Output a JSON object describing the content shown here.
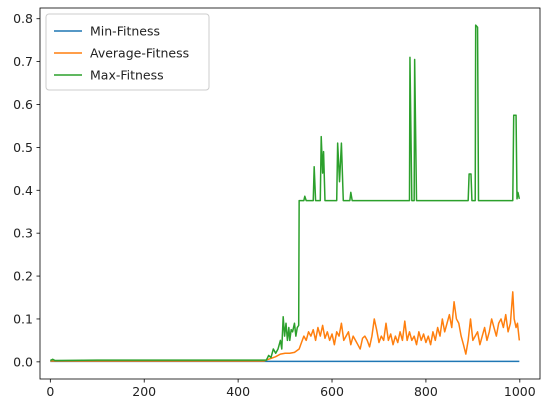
{
  "chart_data": {
    "type": "line",
    "title": "",
    "xlabel": "",
    "ylabel": "",
    "xlim": [
      -22,
      1043
    ],
    "ylim": [
      -0.04,
      0.825
    ],
    "xticks": [
      0,
      200,
      400,
      600,
      800,
      1000
    ],
    "yticks": [
      0.0,
      0.1,
      0.2,
      0.3,
      0.4,
      0.5,
      0.6,
      0.7,
      0.8
    ],
    "grid": false,
    "legend_position": "upper-left",
    "series": [
      {
        "name": "Min-Fitness",
        "color": "#1f77b4",
        "points": [
          [
            0,
            0.001
          ],
          [
            200,
            0.001
          ],
          [
            400,
            0.001
          ],
          [
            600,
            0.001
          ],
          [
            800,
            0.001
          ],
          [
            999,
            0.001
          ]
        ]
      },
      {
        "name": "Average-Fitness",
        "color": "#ff7f0e",
        "points": [
          [
            0,
            0.002
          ],
          [
            100,
            0.002
          ],
          [
            200,
            0.002
          ],
          [
            300,
            0.002
          ],
          [
            400,
            0.002
          ],
          [
            455,
            0.002
          ],
          [
            462,
            0.005
          ],
          [
            470,
            0.008
          ],
          [
            480,
            0.012
          ],
          [
            490,
            0.018
          ],
          [
            500,
            0.02
          ],
          [
            510,
            0.02
          ],
          [
            520,
            0.022
          ],
          [
            530,
            0.03
          ],
          [
            535,
            0.045
          ],
          [
            540,
            0.06
          ],
          [
            545,
            0.05
          ],
          [
            550,
            0.07
          ],
          [
            555,
            0.06
          ],
          [
            560,
            0.075
          ],
          [
            565,
            0.05
          ],
          [
            570,
            0.08
          ],
          [
            575,
            0.06
          ],
          [
            580,
            0.085
          ],
          [
            585,
            0.055
          ],
          [
            590,
            0.07
          ],
          [
            595,
            0.05
          ],
          [
            600,
            0.065
          ],
          [
            605,
            0.04
          ],
          [
            610,
            0.07
          ],
          [
            615,
            0.06
          ],
          [
            620,
            0.09
          ],
          [
            625,
            0.05
          ],
          [
            630,
            0.06
          ],
          [
            635,
            0.07
          ],
          [
            640,
            0.04
          ],
          [
            645,
            0.06
          ],
          [
            650,
            0.05
          ],
          [
            655,
            0.04
          ],
          [
            660,
            0.03
          ],
          [
            665,
            0.055
          ],
          [
            670,
            0.06
          ],
          [
            675,
            0.05
          ],
          [
            680,
            0.035
          ],
          [
            685,
            0.06
          ],
          [
            690,
            0.1
          ],
          [
            695,
            0.075
          ],
          [
            700,
            0.045
          ],
          [
            705,
            0.06
          ],
          [
            710,
            0.05
          ],
          [
            715,
            0.09
          ],
          [
            720,
            0.05
          ],
          [
            725,
            0.065
          ],
          [
            730,
            0.04
          ],
          [
            735,
            0.06
          ],
          [
            740,
            0.045
          ],
          [
            745,
            0.07
          ],
          [
            750,
            0.05
          ],
          [
            755,
            0.095
          ],
          [
            760,
            0.05
          ],
          [
            765,
            0.07
          ],
          [
            770,
            0.05
          ],
          [
            775,
            0.06
          ],
          [
            780,
            0.04
          ],
          [
            785,
            0.07
          ],
          [
            790,
            0.05
          ],
          [
            795,
            0.065
          ],
          [
            800,
            0.045
          ],
          [
            805,
            0.06
          ],
          [
            810,
            0.04
          ],
          [
            815,
            0.07
          ],
          [
            820,
            0.05
          ],
          [
            825,
            0.08
          ],
          [
            830,
            0.06
          ],
          [
            835,
            0.1
          ],
          [
            840,
            0.07
          ],
          [
            845,
            0.09
          ],
          [
            850,
            0.11
          ],
          [
            855,
            0.08
          ],
          [
            860,
            0.14
          ],
          [
            865,
            0.1
          ],
          [
            870,
            0.09
          ],
          [
            875,
            0.06
          ],
          [
            880,
            0.04
          ],
          [
            885,
            0.018
          ],
          [
            890,
            0.05
          ],
          [
            895,
            0.1
          ],
          [
            900,
            0.05
          ],
          [
            905,
            0.06
          ],
          [
            910,
            0.07
          ],
          [
            915,
            0.04
          ],
          [
            920,
            0.06
          ],
          [
            925,
            0.08
          ],
          [
            930,
            0.05
          ],
          [
            935,
            0.07
          ],
          [
            940,
            0.1
          ],
          [
            945,
            0.08
          ],
          [
            950,
            0.06
          ],
          [
            955,
            0.09
          ],
          [
            960,
            0.1
          ],
          [
            965,
            0.08
          ],
          [
            970,
            0.11
          ],
          [
            975,
            0.07
          ],
          [
            980,
            0.09
          ],
          [
            985,
            0.163
          ],
          [
            988,
            0.1
          ],
          [
            992,
            0.08
          ],
          [
            995,
            0.09
          ],
          [
            999,
            0.05
          ]
        ]
      },
      {
        "name": "Max-Fitness",
        "color": "#2ca02c",
        "points": [
          [
            0,
            0.003
          ],
          [
            5,
            0.006
          ],
          [
            10,
            0.003
          ],
          [
            100,
            0.004
          ],
          [
            200,
            0.004
          ],
          [
            300,
            0.004
          ],
          [
            400,
            0.004
          ],
          [
            460,
            0.004
          ],
          [
            462,
            0.008
          ],
          [
            465,
            0.015
          ],
          [
            470,
            0.01
          ],
          [
            475,
            0.03
          ],
          [
            480,
            0.02
          ],
          [
            485,
            0.03
          ],
          [
            490,
            0.05
          ],
          [
            493,
            0.03
          ],
          [
            496,
            0.105
          ],
          [
            499,
            0.06
          ],
          [
            502,
            0.09
          ],
          [
            505,
            0.05
          ],
          [
            508,
            0.08
          ],
          [
            510,
            0.05
          ],
          [
            513,
            0.075
          ],
          [
            516,
            0.07
          ],
          [
            520,
            0.09
          ],
          [
            523,
            0.06
          ],
          [
            526,
            0.08
          ],
          [
            529,
            0.085
          ],
          [
            530,
            0.376
          ],
          [
            540,
            0.376
          ],
          [
            542,
            0.386
          ],
          [
            545,
            0.376
          ],
          [
            560,
            0.376
          ],
          [
            562,
            0.455
          ],
          [
            565,
            0.376
          ],
          [
            575,
            0.376
          ],
          [
            577,
            0.525
          ],
          [
            580,
            0.44
          ],
          [
            582,
            0.49
          ],
          [
            585,
            0.376
          ],
          [
            610,
            0.376
          ],
          [
            612,
            0.51
          ],
          [
            616,
            0.42
          ],
          [
            620,
            0.51
          ],
          [
            624,
            0.376
          ],
          [
            638,
            0.376
          ],
          [
            640,
            0.395
          ],
          [
            643,
            0.376
          ],
          [
            765,
            0.376
          ],
          [
            766,
            0.71
          ],
          [
            770,
            0.376
          ],
          [
            775,
            0.376
          ],
          [
            776,
            0.705
          ],
          [
            780,
            0.376
          ],
          [
            890,
            0.376
          ],
          [
            892,
            0.438
          ],
          [
            896,
            0.438
          ],
          [
            898,
            0.376
          ],
          [
            905,
            0.376
          ],
          [
            906,
            0.785
          ],
          [
            910,
            0.78
          ],
          [
            912,
            0.376
          ],
          [
            985,
            0.376
          ],
          [
            987,
            0.575
          ],
          [
            992,
            0.575
          ],
          [
            994,
            0.38
          ],
          [
            996,
            0.395
          ],
          [
            999,
            0.38
          ]
        ]
      }
    ]
  }
}
